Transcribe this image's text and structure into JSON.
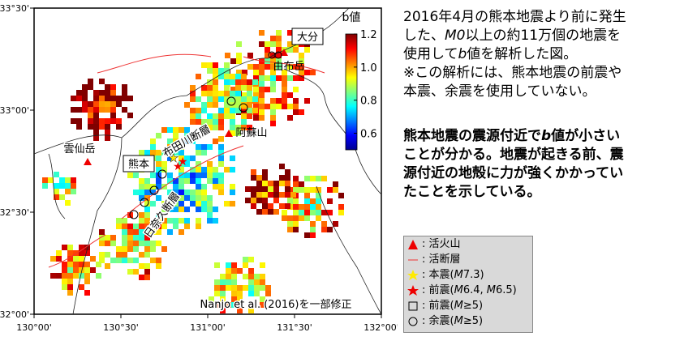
{
  "map": {
    "lon_ticks": [
      {
        "value": 130,
        "label": "130°00'"
      },
      {
        "value": 130.5,
        "label": "130°30'"
      },
      {
        "value": 131,
        "label": "131°00'"
      },
      {
        "value": 131.5,
        "label": "131°30'"
      },
      {
        "value": 132,
        "label": "132°00'"
      }
    ],
    "lat_ticks": [
      {
        "value": 33.5,
        "label": "33°30'"
      },
      {
        "value": 33,
        "label": "33°00'"
      },
      {
        "value": 32.5,
        "label": "32°30'"
      },
      {
        "value": 32,
        "label": "32°00'"
      }
    ],
    "places": [
      "大分",
      "由布岳",
      "阿蘇山",
      "布田川断層",
      "熊本",
      "雲仙岳",
      "日奈久断層"
    ],
    "citation": "Nanjo et al. (2016)を一部修正",
    "colorbar": {
      "title": "b値",
      "lim": [
        0.5,
        1.2
      ],
      "ticks": [
        1.2,
        {
          "value": 1,
          "label": "1.0"
        },
        0.8,
        0.6
      ]
    }
  },
  "description": {
    "lines": [
      [
        "2016年4月の熊本地震より前に発生"
      ],
      [
        "した、",
        "M0",
        "以上の約11万個の地震を"
      ],
      [
        "使用して",
        "b",
        "値を解析した図。"
      ],
      [
        "※この解析には、熊本地震の前震や"
      ],
      [
        "本震、余震を使用していない。"
      ]
    ],
    "bold_lines": [
      [
        "熊本地震の震源付近で",
        "b",
        "値が小さい"
      ],
      [
        "ことが分かる。地震が起きる前、震"
      ],
      [
        "源付近の地殻に力が強くかかってい"
      ],
      [
        "たことを示している。"
      ]
    ]
  },
  "legend": [
    [
      ": 活火山"
    ],
    [
      ": 活断層"
    ],
    [
      ": 本震(",
      "M",
      "7.3)"
    ],
    [
      ": 前震(",
      "M",
      "6.4, ",
      "M",
      "6.5)"
    ],
    [
      ": 前震(",
      "M",
      "≥5)"
    ],
    [
      ": 余震(",
      "M",
      "≥5)"
    ]
  ]
}
